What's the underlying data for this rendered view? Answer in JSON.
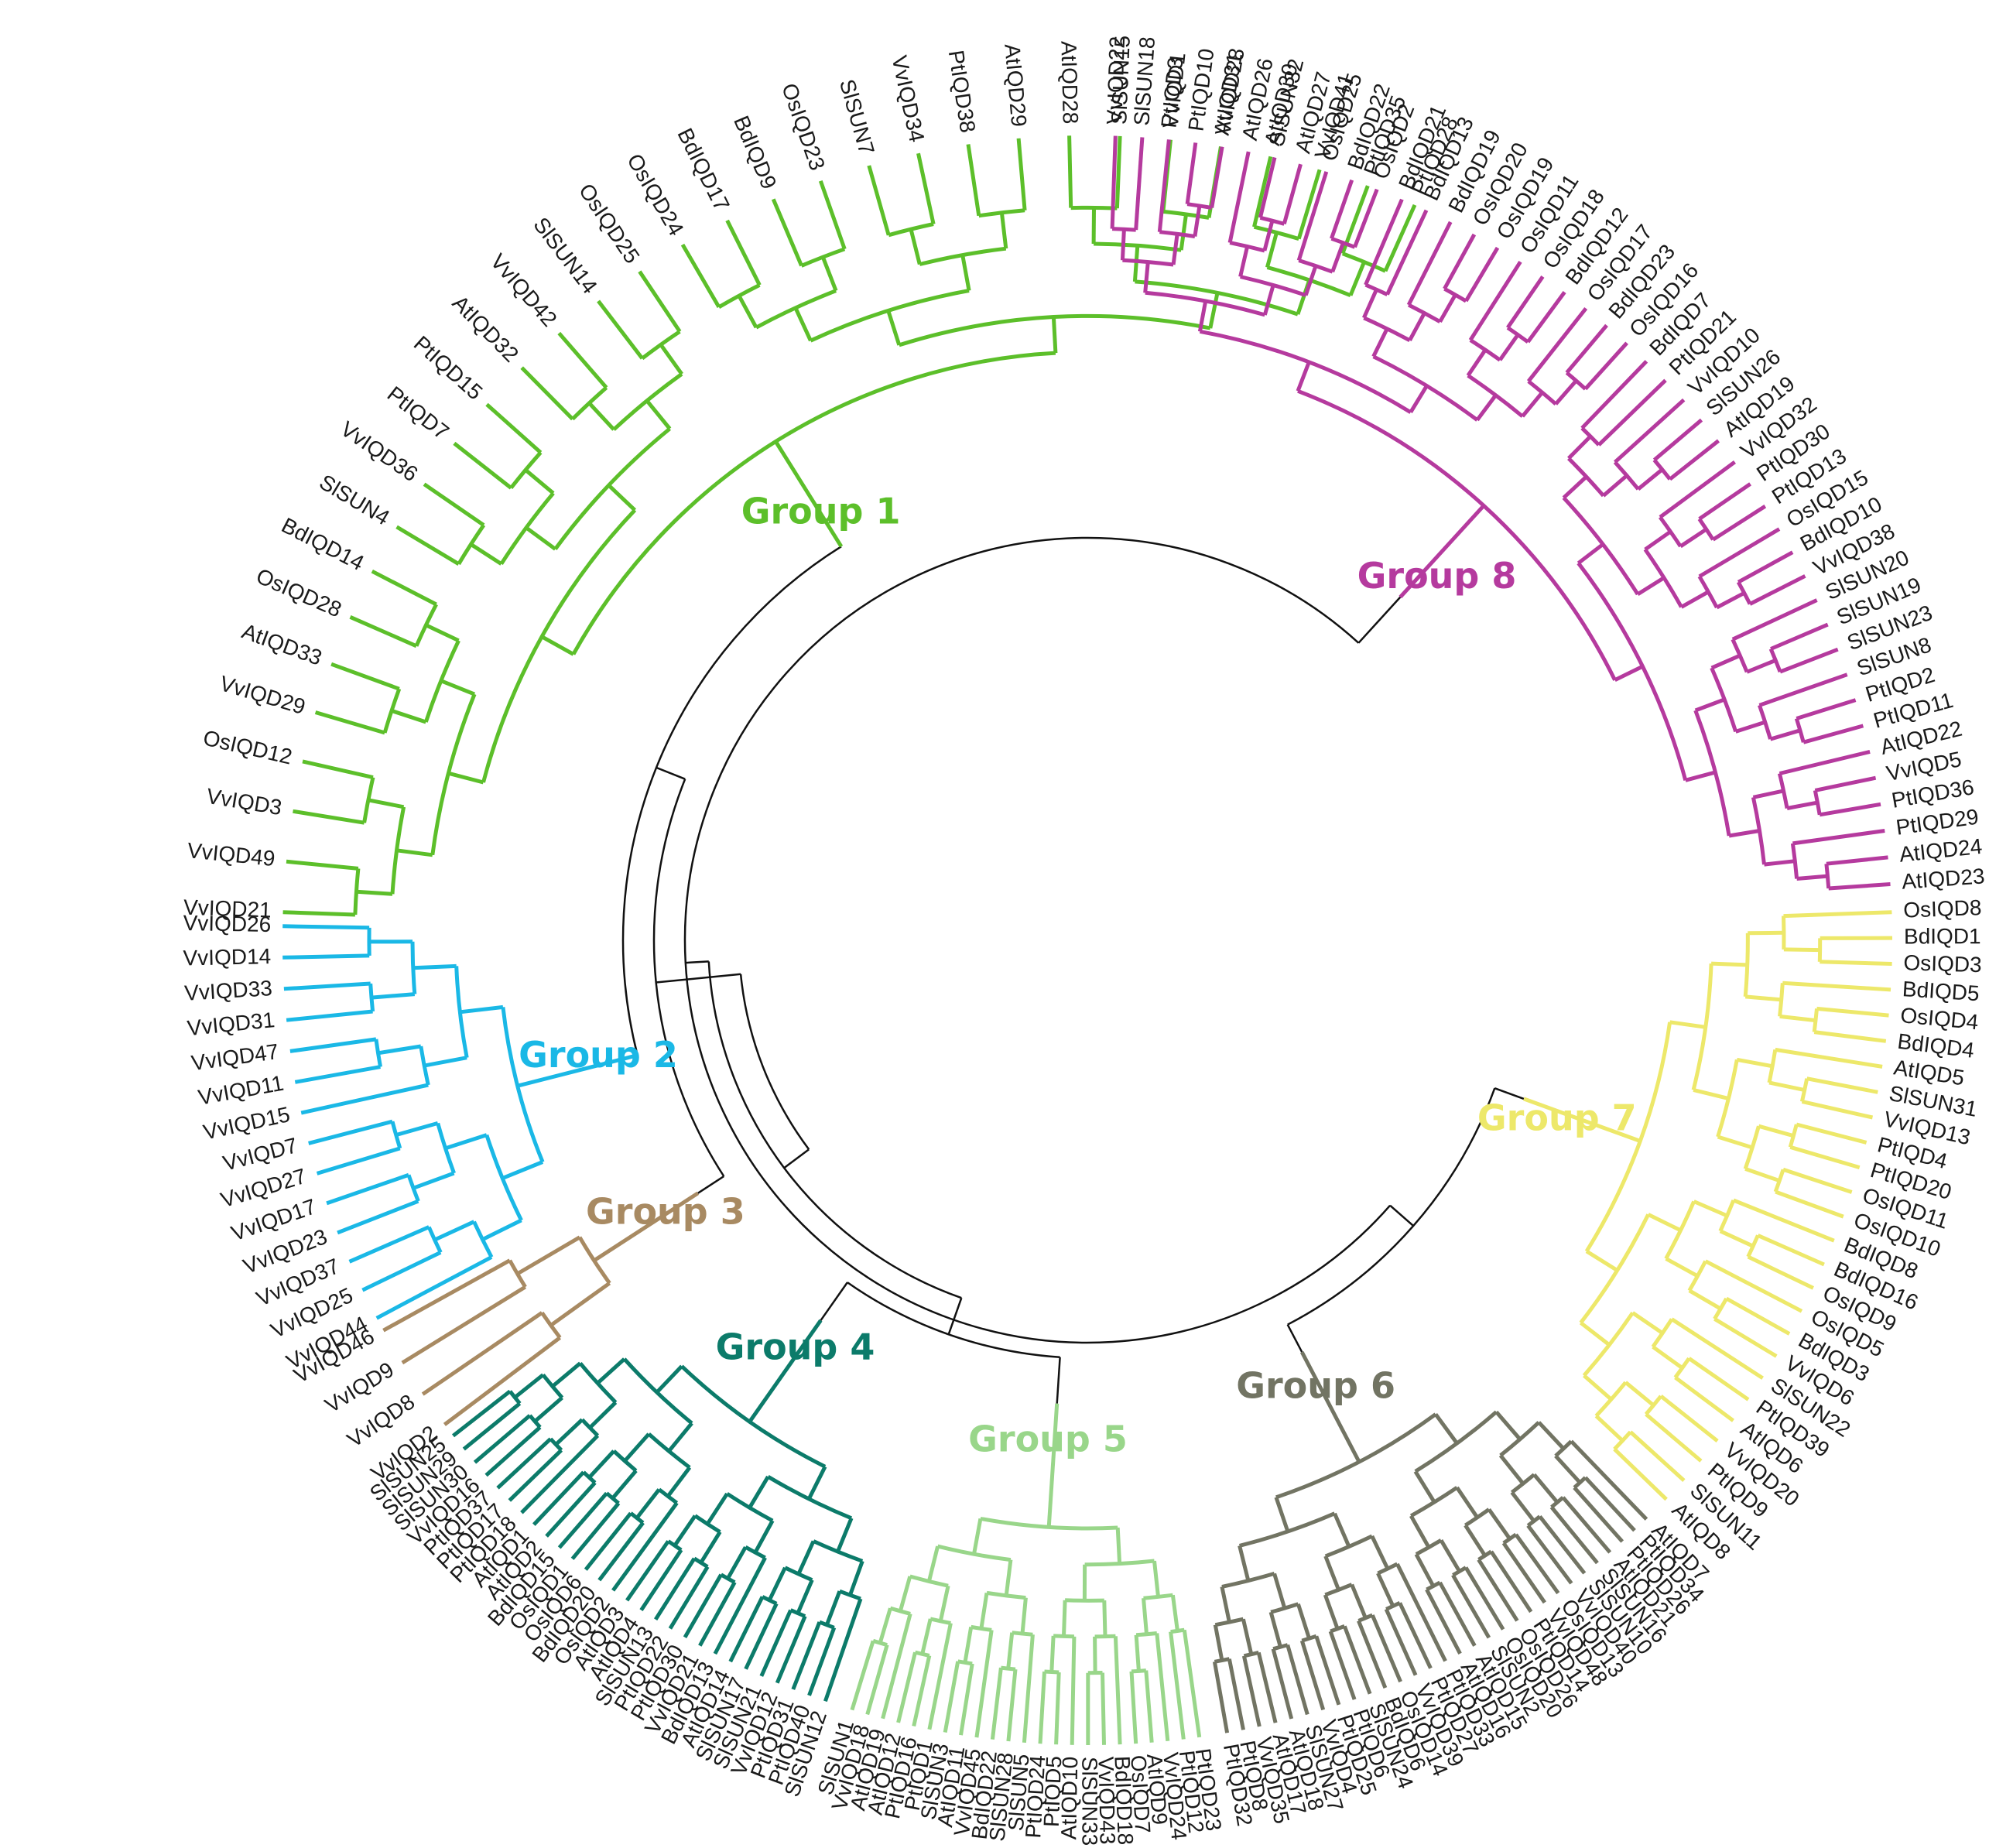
{
  "groups": [
    {
      "label": "Group 1",
      "color": "#5cbf2a",
      "leaves": [
        "PtIQD28",
        "PtIQD35",
        "VvIQD41",
        "AtIQD30",
        "AtIQD31",
        "VvIQD1",
        "SlSUN15",
        "AtIQD28",
        "AtIQD29",
        "PtIQD38",
        "VvIQD34",
        "SlSUN7",
        "OsIQD23",
        "BdIQD9",
        "BdIQD17",
        "OsIQD24",
        "OsIQD25",
        "SlSUN14",
        "VvIQD42",
        "AtIQD32",
        "PtIQD15",
        "PtIQD7",
        "VvIQD36",
        "SlSUN4",
        "BdIQD14",
        "OsIQD28",
        "AtIQD33",
        "VvIQD29",
        "OsIQD12",
        "VvIQD3",
        "VvIQD49",
        "VvIQD21"
      ]
    },
    {
      "label": "Group 2",
      "color": "#1ab8e6",
      "leaves": [
        "VvIQD26",
        "VvIQD14",
        "VvIQD33",
        "VvIQD31",
        "VvIQD47",
        "VvIQD11",
        "VvIQD15",
        "VvIQD7",
        "VvIQD27",
        "VvIQD17",
        "VvIQD23",
        "VvIQD37",
        "VvIQD25",
        "VvIQD44"
      ]
    },
    {
      "label": "Group 3",
      "color": "#a88a62",
      "leaves": [
        "VvIQD46",
        "VvIQD9",
        "VvIQD8",
        "VvIQD2"
      ]
    },
    {
      "label": "Group 4",
      "color": "#0c7b6a",
      "leaves": [
        "SlSUN25",
        "SlSUN29",
        "SlSUN30",
        "VvIQD16",
        "PtIQD37",
        "PtIQD17",
        "PtIQD18",
        "AtIQD1",
        "AtIQD2",
        "BdIQD15",
        "OsIQD1",
        "OsIQD6",
        "BdIQD20",
        "OsIQD2",
        "AtIQD3",
        "AtIQD4",
        "SlSUN13",
        "PtIQD22",
        "PtIQD30",
        "VvIQD21",
        "BdIQD13",
        "AtIQD14",
        "SlSUN17",
        "SlSUN21",
        "VvIQD12",
        "PtIQD31",
        "PtIQD40",
        "SlSUN12"
      ]
    },
    {
      "label": "Group 5",
      "color": "#99d68a",
      "leaves": [
        "SlSUN1",
        "VvIQD18",
        "AtIQD19",
        "AtIQD12",
        "PtIQD16",
        "PtIQD1",
        "SlSUN3",
        "AtIQD11",
        "VvIQD45",
        "BdIQD22",
        "SlSUN28",
        "SlSUN5",
        "PtIQD24",
        "PtIQD5",
        "AtIQD10",
        "SlSUN33",
        "VvIQD43",
        "BdIQD18",
        "OsIQD7",
        "AtIQD9",
        "VvIQD24",
        "PtIQD12",
        "PtIQD23"
      ]
    },
    {
      "label": "Group 6",
      "color": "#727463",
      "leaves": [
        "PtIQD32",
        "PtIQD8",
        "VvIQD35",
        "AtIQD17",
        "AtIQD18",
        "SlSUN27",
        "VvIQD4",
        "PtIQD25",
        "PtIQD6",
        "SlSUN24",
        "BdIQD6",
        "OsIQD14",
        "VvIQD39",
        "PtIQD27",
        "PtIQD33",
        "AtIQD16",
        "AtIQD15",
        "SlSUN2",
        "OsIQD20",
        "OsIQD26",
        "PtIQD14",
        "VvIQD48",
        "OsIQD13",
        "VvIQD40",
        "SlSUN10",
        "SlSUN16",
        "AtIQD21",
        "PtIQD26",
        "PtIQD34",
        "AtIQD7"
      ]
    },
    {
      "label": "Group 7",
      "color": "#ede86a",
      "leaves": [
        "AtIQD8",
        "SlSUN11",
        "PtIQD9",
        "VvIQD20",
        "AtIQD6",
        "PtIQD39",
        "SlSUN22",
        "VvIQD6",
        "BdIQD3",
        "OsIQD5",
        "OsIQD9",
        "BdIQD16",
        "BdIQD8",
        "OsIQD10",
        "OsIQD11",
        "PtIQD20",
        "PtIQD4",
        "VvIQD13",
        "SlSUN31",
        "AtIQD5",
        "BdIQD4",
        "OsIQD4",
        "BdIQD5",
        "OsIQD3",
        "BdIQD1",
        "OsIQD8"
      ]
    },
    {
      "label": "Group 8",
      "color": "#b53a9e",
      "leaves": [
        "AtIQD23",
        "AtIQD24",
        "PtIQD29",
        "PtIQD36",
        "VvIQD5",
        "AtIQD22",
        "PtIQD11",
        "PtIQD2",
        "SlSUN8",
        "SlSUN23",
        "SlSUN19",
        "SlSUN20",
        "VvIQD38",
        "BdIQD10",
        "OsIQD15",
        "PtIQD13",
        "PtIQD30",
        "VvIQD32",
        "AtIQD19",
        "SlSUN26",
        "VvIQD10",
        "PtIQD21",
        "BdIQD7",
        "OsIQD16",
        "BdIQD23",
        "OsIQD17",
        "BdIQD12",
        "OsIQD18",
        "OsIQD11",
        "OsIQD19",
        "OsIQD20",
        "BdIQD19",
        "BdIQD13",
        "BdIQD21",
        "OsIQD2",
        "BdIQD22",
        "OsIQD25",
        "AtIQD27",
        "SlSUN32",
        "AtIQD26",
        "VvIQD28",
        "PtIQD10",
        "PtIQD3",
        "SlSUN18",
        "VvIQD22"
      ]
    }
  ],
  "backbone_color": "#111111"
}
